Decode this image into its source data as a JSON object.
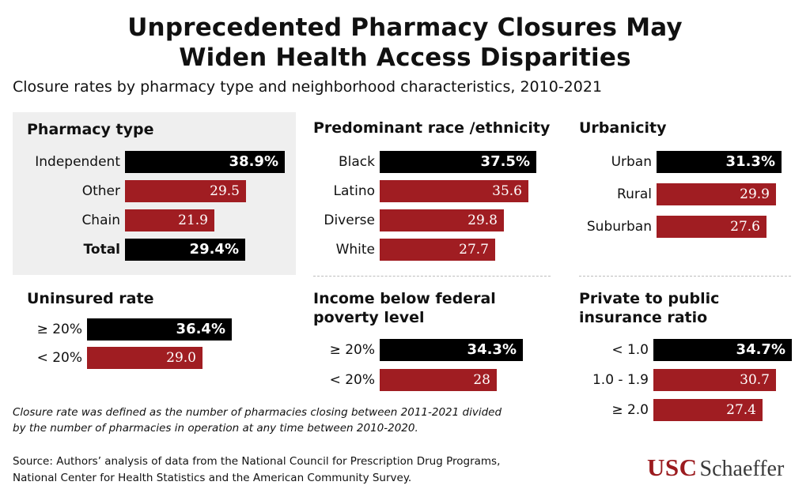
{
  "header": {
    "title_line1": "Unprecedented Pharmacy Closures May",
    "title_line2": "Widen Health Access Disparities",
    "subtitle": "Closure rates by pharmacy type and neighborhood characteristics, 2010-2021"
  },
  "colors": {
    "highlight_bar": "#000000",
    "bar": "#a01d22",
    "panel_bg": "#efefef",
    "brand_red": "#9b1b1f"
  },
  "chart_data": [
    {
      "type": "bar",
      "title": "Pharmacy type",
      "categories": [
        "Independent",
        "Other",
        "Chain",
        "Total"
      ],
      "values": [
        38.9,
        29.5,
        21.9,
        29.4
      ],
      "display": [
        "38.9%",
        "29.5",
        "21.9",
        "29.4%"
      ],
      "highlight": [
        true,
        false,
        false,
        true
      ],
      "bold_labels": [
        false,
        false,
        false,
        true
      ],
      "orientation": "horizontal",
      "xlim": [
        0,
        40
      ]
    },
    {
      "type": "bar",
      "title": "Predominant race /ethnicity",
      "categories": [
        "Black",
        "Latino",
        "Diverse",
        "White"
      ],
      "values": [
        37.5,
        35.6,
        29.8,
        27.7
      ],
      "display": [
        "37.5%",
        "35.6",
        "29.8",
        "27.7"
      ],
      "highlight": [
        true,
        false,
        false,
        false
      ],
      "bold_labels": [
        false,
        false,
        false,
        false
      ],
      "orientation": "horizontal",
      "xlim": [
        0,
        40
      ]
    },
    {
      "type": "bar",
      "title": "Urbanicity",
      "categories": [
        "Urban",
        "Rural",
        "Suburban"
      ],
      "values": [
        31.3,
        29.9,
        27.6
      ],
      "display": [
        "31.3%",
        "29.9",
        "27.6"
      ],
      "highlight": [
        true,
        false,
        false
      ],
      "bold_labels": [
        false,
        false,
        false
      ],
      "orientation": "horizontal",
      "xlim": [
        0,
        40
      ]
    },
    {
      "type": "bar",
      "title": "Uninsured rate",
      "categories": [
        "≥ 20%",
        "< 20%"
      ],
      "values": [
        36.4,
        29.0
      ],
      "display": [
        "36.4%",
        "29.0"
      ],
      "highlight": [
        true,
        false
      ],
      "bold_labels": [
        false,
        false
      ],
      "orientation": "horizontal",
      "xlim": [
        0,
        40
      ]
    },
    {
      "type": "bar",
      "title_lines": [
        "Income below federal",
        "poverty level"
      ],
      "categories": [
        "≥ 20%",
        "< 20%"
      ],
      "values": [
        34.3,
        28
      ],
      "display": [
        "34.3%",
        "28"
      ],
      "highlight": [
        true,
        false
      ],
      "bold_labels": [
        false,
        false
      ],
      "orientation": "horizontal",
      "xlim": [
        0,
        40
      ]
    },
    {
      "type": "bar",
      "title_lines": [
        "Private to public",
        "insurance ratio"
      ],
      "categories": [
        "< 1.0",
        "1.0 - 1.9",
        "≥ 2.0"
      ],
      "values": [
        34.7,
        30.7,
        27.4
      ],
      "display": [
        "34.7%",
        "30.7",
        "27.4"
      ],
      "highlight": [
        true,
        false,
        false
      ],
      "bold_labels": [
        false,
        false,
        false
      ],
      "orientation": "horizontal",
      "xlim": [
        0,
        40
      ]
    }
  ],
  "footnote": {
    "line1": "Closure rate was defined as the number of pharmacies closing between 2011-2021 divided",
    "line2": "by the number of pharmacies in operation at any time between 2010-2020."
  },
  "source": {
    "line1": "Source: Authors’ analysis of data from the National Council for Prescription Drug Programs,",
    "line2": "National Center for Health Statistics and the American Community Survey."
  },
  "logo": {
    "part1": "USC",
    "part2": "Schaeffer"
  }
}
